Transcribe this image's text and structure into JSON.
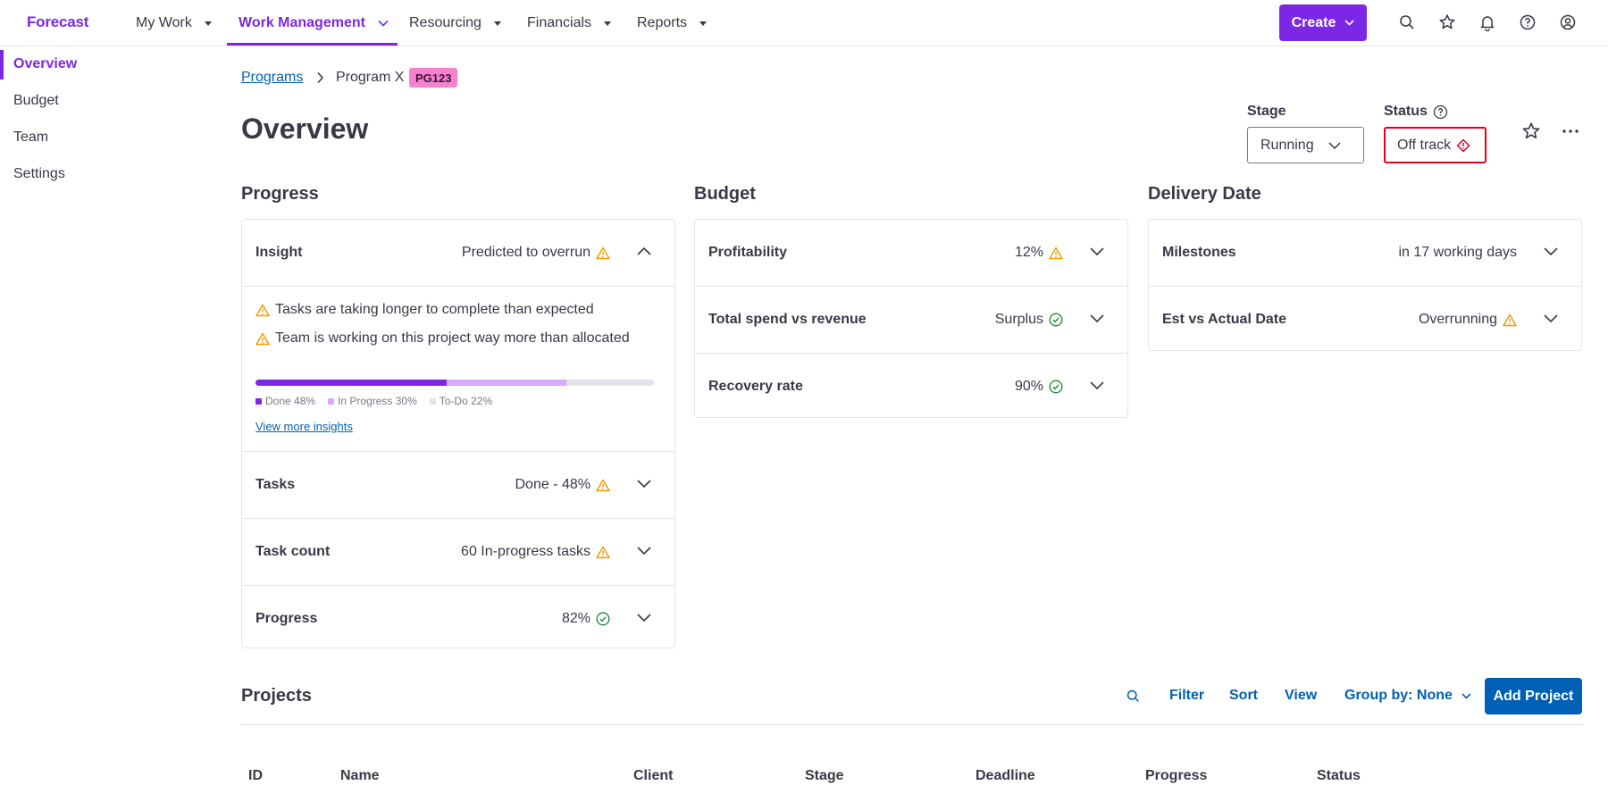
{
  "app": {
    "logo": "Forecast"
  },
  "nav": {
    "items": [
      {
        "label": "My Work"
      },
      {
        "label": "Work Management"
      },
      {
        "label": "Resourcing"
      },
      {
        "label": "Financials"
      },
      {
        "label": "Reports"
      }
    ],
    "active": "Work Management",
    "create_label": "Create",
    "icons": [
      "search-icon",
      "star-icon",
      "bell-icon",
      "help-icon",
      "profile-icon"
    ]
  },
  "colors": {
    "brand": "#7d27e6",
    "link": "#0060b5",
    "warning": "#f29d00",
    "success": "#228b3a",
    "danger": "#e0001f",
    "badge": "#f781cf"
  },
  "sidebar": {
    "items": [
      {
        "label": "Overview"
      },
      {
        "label": "Budget"
      },
      {
        "label": "Team"
      },
      {
        "label": "Settings"
      }
    ],
    "active": "Overview"
  },
  "breadcrumb": {
    "parent": "Programs",
    "current": "Program X",
    "badge": "PG123"
  },
  "page": {
    "title": "Overview"
  },
  "stage": {
    "label": "Stage",
    "value": "Running"
  },
  "status": {
    "label": "Status",
    "value": "Off track"
  },
  "progress_section": {
    "title": "Progress",
    "insight": {
      "label": "Insight",
      "value": "Predicted to overrun"
    },
    "insight_lines": [
      "Tasks are taking longer to complete than expected",
      "Team is working on this project way more than allocated"
    ],
    "bar": {
      "done": 48,
      "in_progress": 30,
      "todo": 22
    },
    "legend": [
      "Done 48%",
      "In Progress 30%",
      "To-Do 22%"
    ],
    "link": "View more insights",
    "rows": [
      {
        "label": "Tasks",
        "value": "Done - 48%",
        "icon": "warning-icon"
      },
      {
        "label": "Task count",
        "value": "60 In-progress tasks",
        "icon": "warning-icon"
      },
      {
        "label": "Progress",
        "value": "82%",
        "icon": "check-circle-icon"
      }
    ]
  },
  "budget_section": {
    "title": "Budget",
    "rows": [
      {
        "label": "Profitability",
        "value": "12%",
        "icon": "warning-icon"
      },
      {
        "label": "Total spend vs revenue",
        "value": "Surplus",
        "icon": "check-circle-icon"
      },
      {
        "label": "Recovery rate",
        "value": "90%",
        "icon": "check-circle-icon"
      }
    ]
  },
  "delivery_section": {
    "title": "Delivery Date",
    "rows": [
      {
        "label": "Milestones",
        "value": "in 17 working days",
        "icon": ""
      },
      {
        "label": "Est vs Actual Date",
        "value": "Overrunning",
        "icon": "warning-icon"
      }
    ]
  },
  "projects": {
    "title": "Projects",
    "tools": [
      "Filter",
      "Sort",
      "View",
      "Group by: None"
    ],
    "add_label": "Add Project",
    "columns": [
      "ID",
      "Name",
      "Client",
      "Stage",
      "Deadline",
      "Progress",
      "Status"
    ]
  }
}
